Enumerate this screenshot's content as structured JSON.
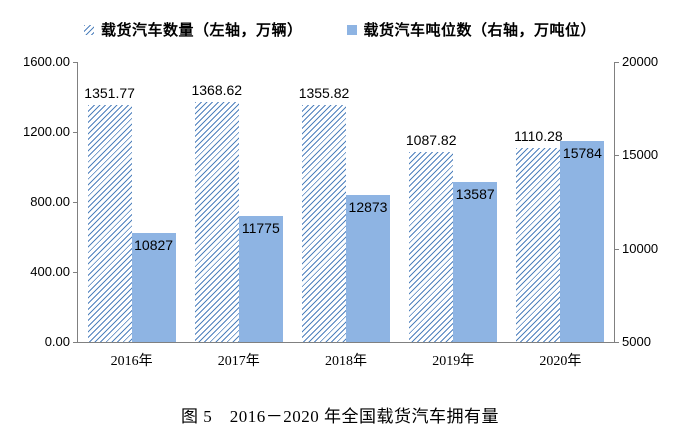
{
  "legend": {
    "items": [
      {
        "label": "载货汽车数量（左轴，万辆）",
        "swatch": "hatched-square"
      },
      {
        "label": "载货汽车吨位数（右轴，万吨位）",
        "swatch": "solid-square"
      }
    ]
  },
  "caption": "图 5　2016－2020 年全国载货汽车拥有量",
  "chart_data": {
    "type": "bar",
    "title": "图 5 2016－2020 年全国载货汽车拥有量",
    "legend_position": "top",
    "grid": false,
    "categories": [
      "2016年",
      "2017年",
      "2018年",
      "2019年",
      "2020年"
    ],
    "series": [
      {
        "name": "载货汽车数量（左轴，万辆）",
        "axis": "left",
        "style": "hatched",
        "values": [
          1351.77,
          1368.62,
          1355.82,
          1087.82,
          1110.28
        ],
        "labels": [
          "1351.77",
          "1368.62",
          "1355.82",
          "1087.82",
          "1110.28"
        ]
      },
      {
        "name": "载货汽车吨位数（右轴，万吨位）",
        "axis": "right",
        "style": "solid",
        "values": [
          10827,
          11775,
          12873,
          13587,
          15784
        ],
        "labels": [
          "10827",
          "11775",
          "12873",
          "13587",
          "15784"
        ]
      }
    ],
    "left_axis": {
      "min": 0,
      "max": 1600,
      "ticks": [
        "1600.00",
        "1200.00",
        "800.00",
        "400.00",
        "0.00"
      ]
    },
    "right_axis": {
      "min": 5000,
      "max": 20000,
      "ticks": [
        "20000",
        "15000",
        "10000",
        "5000"
      ]
    },
    "colors": {
      "solid_bar_fill": "#8EB4E3",
      "hatch_line": "#4F81BD",
      "axis_line": "#808080",
      "label_text": "#000000"
    }
  }
}
